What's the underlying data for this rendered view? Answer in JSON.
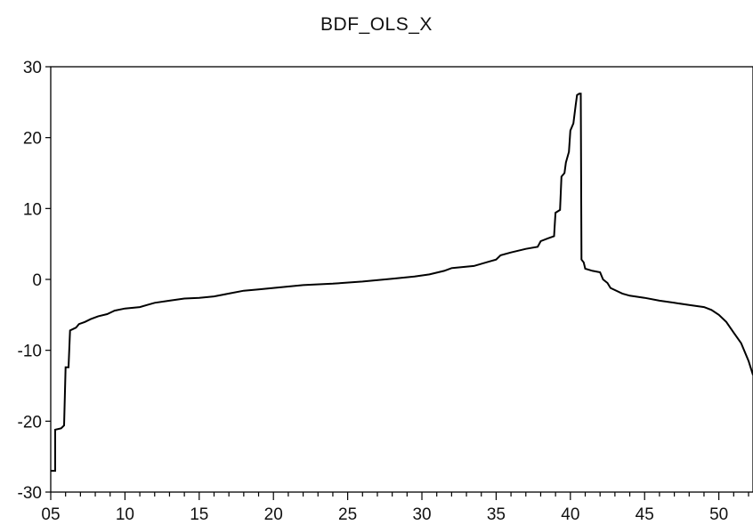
{
  "chart_data": {
    "type": "line",
    "title": "BDF_OLS_X",
    "xlabel": "",
    "ylabel": "",
    "xlim": [
      5,
      52.3
    ],
    "ylim": [
      -30,
      30
    ],
    "x_ticks": [
      "05",
      "10",
      "15",
      "20",
      "25",
      "30",
      "35",
      "40",
      "45",
      "50"
    ],
    "x_tick_values": [
      5,
      10,
      15,
      20,
      25,
      30,
      35,
      40,
      45,
      50
    ],
    "y_ticks": [
      "30",
      "20",
      "10",
      "0",
      "-10",
      "-20",
      "-30"
    ],
    "y_tick_values": [
      30,
      20,
      10,
      0,
      -10,
      -20,
      -30
    ],
    "grid": false,
    "legend": "none",
    "line_color": "#000000",
    "series": [
      {
        "points": [
          [
            5.0,
            -27.0
          ],
          [
            5.3,
            -27.0
          ],
          [
            5.3,
            -21.2
          ],
          [
            5.7,
            -21.0
          ],
          [
            5.9,
            -20.6
          ],
          [
            6.0,
            -12.4
          ],
          [
            6.2,
            -12.4
          ],
          [
            6.3,
            -7.2
          ],
          [
            6.5,
            -7.0
          ],
          [
            6.7,
            -6.8
          ],
          [
            6.9,
            -6.3
          ],
          [
            7.3,
            -6.0
          ],
          [
            7.7,
            -5.6
          ],
          [
            8.2,
            -5.2
          ],
          [
            8.8,
            -4.9
          ],
          [
            9.3,
            -4.4
          ],
          [
            10.0,
            -4.1
          ],
          [
            11.0,
            -3.9
          ],
          [
            11.5,
            -3.6
          ],
          [
            12.0,
            -3.3
          ],
          [
            13.0,
            -3.0
          ],
          [
            14.0,
            -2.7
          ],
          [
            15.0,
            -2.6
          ],
          [
            16.0,
            -2.4
          ],
          [
            17.0,
            -2.0
          ],
          [
            18.0,
            -1.6
          ],
          [
            19.0,
            -1.4
          ],
          [
            20.0,
            -1.2
          ],
          [
            21.0,
            -1.0
          ],
          [
            22.0,
            -0.8
          ],
          [
            24.0,
            -0.6
          ],
          [
            26.0,
            -0.3
          ],
          [
            28.0,
            0.1
          ],
          [
            29.5,
            0.4
          ],
          [
            30.5,
            0.7
          ],
          [
            31.5,
            1.2
          ],
          [
            32.0,
            1.6
          ],
          [
            33.5,
            1.9
          ],
          [
            34.5,
            2.5
          ],
          [
            35.0,
            2.8
          ],
          [
            35.3,
            3.4
          ],
          [
            36.0,
            3.8
          ],
          [
            37.0,
            4.3
          ],
          [
            37.8,
            4.6
          ],
          [
            38.0,
            5.4
          ],
          [
            38.5,
            5.8
          ],
          [
            38.9,
            6.1
          ],
          [
            39.0,
            9.4
          ],
          [
            39.3,
            9.8
          ],
          [
            39.4,
            14.5
          ],
          [
            39.6,
            15.0
          ],
          [
            39.7,
            16.5
          ],
          [
            39.9,
            18.0
          ],
          [
            40.0,
            21.0
          ],
          [
            40.2,
            22.0
          ],
          [
            40.35,
            24.5
          ],
          [
            40.45,
            26.0
          ],
          [
            40.6,
            26.2
          ],
          [
            40.7,
            26.2
          ],
          [
            40.75,
            2.8
          ],
          [
            40.9,
            2.4
          ],
          [
            41.0,
            1.5
          ],
          [
            41.5,
            1.2
          ],
          [
            42.0,
            1.0
          ],
          [
            42.2,
            0.0
          ],
          [
            42.5,
            -0.5
          ],
          [
            42.7,
            -1.2
          ],
          [
            43.0,
            -1.5
          ],
          [
            43.5,
            -2.0
          ],
          [
            44.0,
            -2.3
          ],
          [
            45.0,
            -2.6
          ],
          [
            46.0,
            -3.0
          ],
          [
            47.0,
            -3.3
          ],
          [
            48.0,
            -3.6
          ],
          [
            49.0,
            -3.9
          ],
          [
            49.5,
            -4.3
          ],
          [
            50.0,
            -5.0
          ],
          [
            50.5,
            -6.0
          ],
          [
            51.0,
            -7.5
          ],
          [
            51.5,
            -9.0
          ],
          [
            52.0,
            -11.5
          ],
          [
            52.3,
            -13.5
          ]
        ]
      }
    ]
  }
}
